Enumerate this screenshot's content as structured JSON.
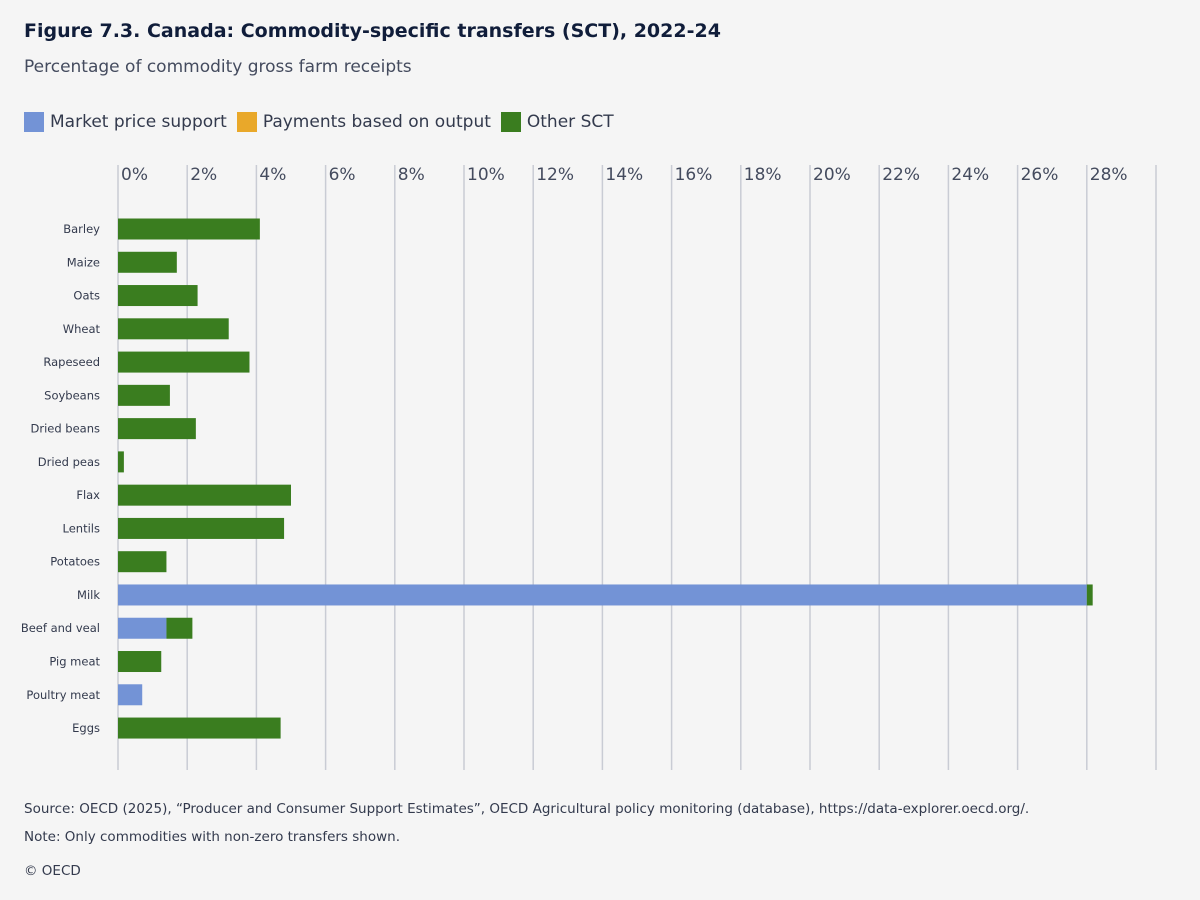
{
  "title": "Figure 7.3. Canada: Commodity-specific transfers (SCT), 2022-24",
  "subtitle": "Percentage of commodity gross farm receipts",
  "source": "Source: OECD (2025), “Producer and Consumer Support Estimates”, OECD Agricultural policy monitoring (database), https://data-explorer.oecd.org/.",
  "note": "Note: Only commodities with non-zero transfers shown.",
  "copyright": "© OECD",
  "chart_data": {
    "type": "bar",
    "orientation": "horizontal",
    "stacked": true,
    "title": "Figure 7.3. Canada: Commodity-specific transfers (SCT), 2022-24",
    "subtitle": "Percentage of commodity gross farm receipts",
    "xlim": [
      0,
      30
    ],
    "x_ticks": [
      "0%",
      "2%",
      "4%",
      "6%",
      "8%",
      "10%",
      "12%",
      "14%",
      "16%",
      "18%",
      "20%",
      "22%",
      "24%",
      "26%",
      "28%"
    ],
    "x_tick_values": [
      0,
      2,
      4,
      6,
      8,
      10,
      12,
      14,
      16,
      18,
      20,
      22,
      24,
      26,
      28
    ],
    "grid": true,
    "legend_position": "top-left",
    "categories": [
      "Barley",
      "Maize",
      "Oats",
      "Wheat",
      "Rapeseed",
      "Soybeans",
      "Dried beans",
      "Dried peas",
      "Flax",
      "Lentils",
      "Potatoes",
      "Milk",
      "Beef and veal",
      "Pig meat",
      "Poultry meat",
      "Eggs"
    ],
    "series": [
      {
        "name": "Market price support",
        "color": "#7393d6",
        "values": [
          0,
          0,
          0,
          0,
          0,
          0,
          0,
          0,
          0,
          0,
          0,
          28.0,
          1.4,
          0,
          0.7,
          0
        ]
      },
      {
        "name": "Payments based on output",
        "color": "#e9a82a",
        "values": [
          0,
          0,
          0,
          0,
          0,
          0,
          0,
          0,
          0,
          0,
          0,
          0,
          0,
          0,
          0,
          0
        ]
      },
      {
        "name": "Other SCT",
        "color": "#3a7d1f",
        "values": [
          4.1,
          1.7,
          2.3,
          3.2,
          3.8,
          1.5,
          2.25,
          0.17,
          5.0,
          4.8,
          1.4,
          0.17,
          0.75,
          1.25,
          0,
          4.7
        ]
      }
    ]
  }
}
